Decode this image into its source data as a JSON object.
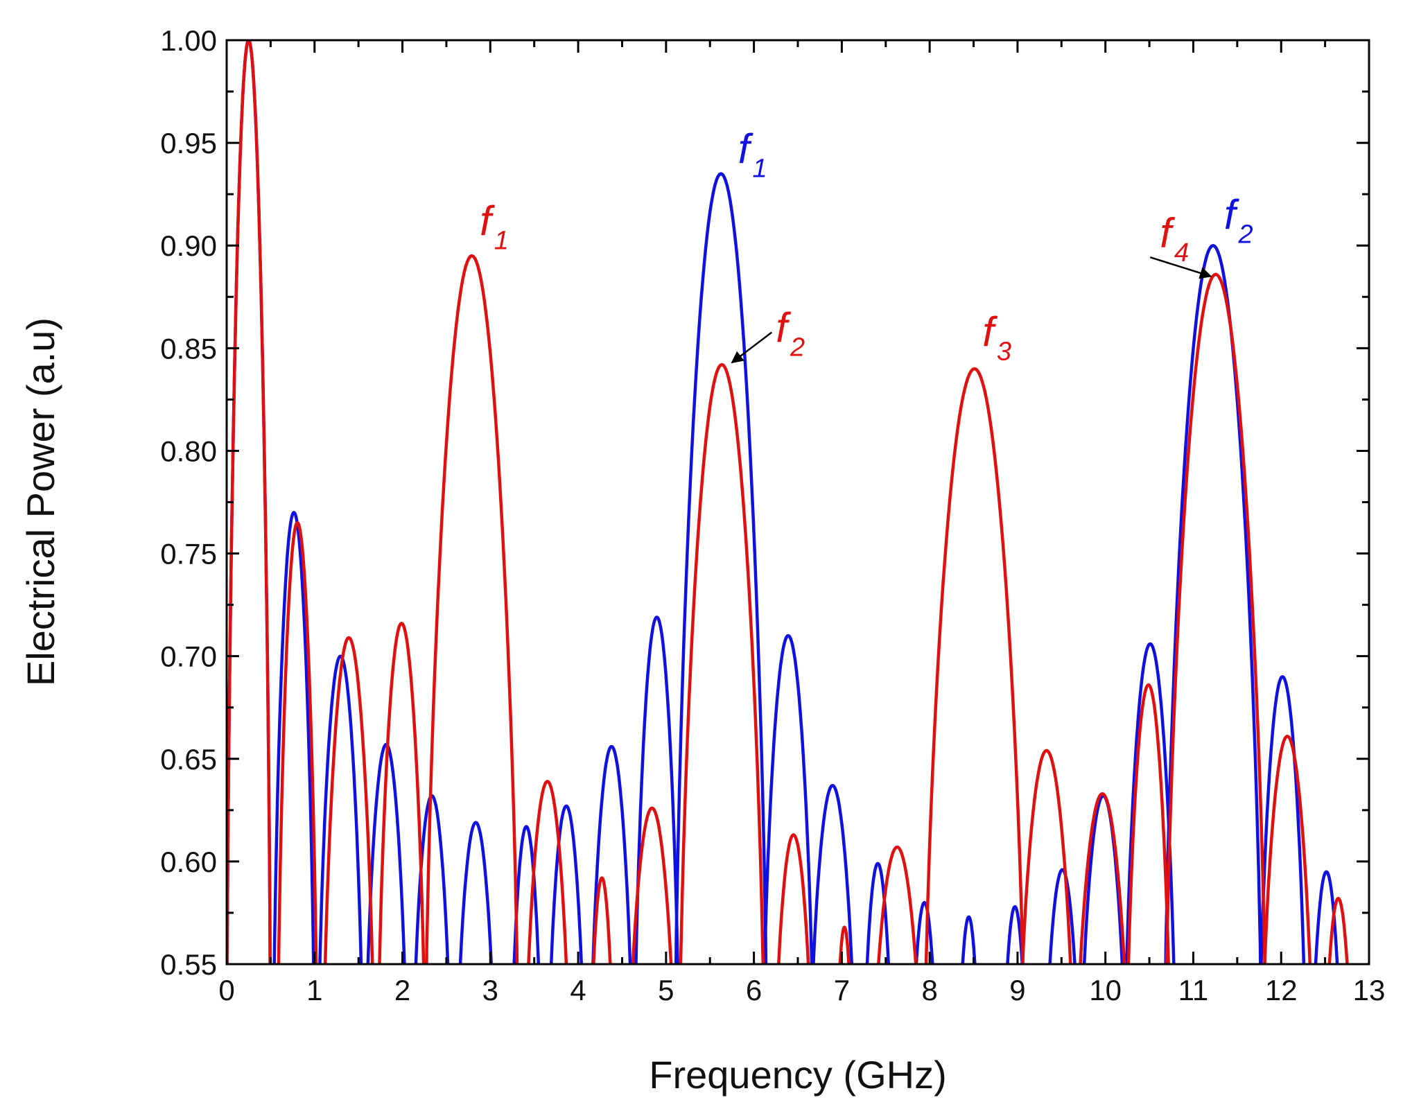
{
  "chart_data": {
    "type": "line",
    "title": "",
    "xlabel": "Frequency (GHz)",
    "ylabel": "Electrical Power (a.u)",
    "xlim": [
      0,
      13
    ],
    "ylim": [
      0.55,
      1.0
    ],
    "x_ticks": [
      "0",
      "1",
      "2",
      "3",
      "4",
      "5",
      "6",
      "7",
      "8",
      "9",
      "10",
      "11",
      "12",
      "13"
    ],
    "y_ticks": [
      "0.55",
      "0.60",
      "0.65",
      "0.70",
      "0.75",
      "0.80",
      "0.85",
      "0.90",
      "0.95",
      "1.00"
    ],
    "grid": false,
    "series": [
      {
        "name": "blue",
        "color": "#1010e0",
        "lobes": [
          [
            0.0,
            0.5,
            1.0
          ],
          [
            0.53,
            1.0,
            0.77
          ],
          [
            1.04,
            1.55,
            0.7
          ],
          [
            1.58,
            2.05,
            0.657
          ],
          [
            2.12,
            2.55,
            0.632
          ],
          [
            2.62,
            3.05,
            0.619
          ],
          [
            3.24,
            3.58,
            0.617
          ],
          [
            3.66,
            4.07,
            0.627
          ],
          [
            4.14,
            4.62,
            0.656
          ],
          [
            4.64,
            5.15,
            0.719
          ],
          [
            5.1,
            6.15,
            0.935
          ],
          [
            6.1,
            6.68,
            0.71
          ],
          [
            6.64,
            7.15,
            0.637
          ],
          [
            7.25,
            7.57,
            0.599
          ],
          [
            7.8,
            8.08,
            0.58
          ],
          [
            8.33,
            8.56,
            0.573
          ],
          [
            8.84,
            9.1,
            0.578
          ],
          [
            9.32,
            9.7,
            0.596
          ],
          [
            9.72,
            10.23,
            0.632
          ],
          [
            10.22,
            10.8,
            0.706
          ],
          [
            10.67,
            11.78,
            0.9
          ],
          [
            11.75,
            12.28,
            0.69
          ],
          [
            12.35,
            12.68,
            0.595
          ]
        ]
      },
      {
        "name": "red",
        "color": "#e01010",
        "lobes": [
          [
            0.0,
            0.5,
            1.0
          ],
          [
            0.58,
            1.03,
            0.765
          ],
          [
            1.1,
            1.68,
            0.709
          ],
          [
            1.72,
            2.26,
            0.716
          ],
          [
            2.26,
            3.32,
            0.895
          ],
          [
            3.4,
            3.9,
            0.639
          ],
          [
            4.14,
            4.4,
            0.592
          ],
          [
            4.58,
            5.1,
            0.626
          ],
          [
            5.15,
            6.12,
            0.842
          ],
          [
            6.24,
            6.66,
            0.613
          ],
          [
            6.94,
            7.12,
            0.568
          ],
          [
            7.36,
            7.9,
            0.607
          ],
          [
            7.94,
            9.08,
            0.84
          ],
          [
            9.02,
            9.64,
            0.654
          ],
          [
            9.67,
            10.26,
            0.633
          ],
          [
            10.24,
            10.74,
            0.686
          ],
          [
            10.68,
            11.83,
            0.886
          ],
          [
            11.78,
            12.36,
            0.661
          ],
          [
            12.5,
            12.8,
            0.582
          ]
        ]
      }
    ],
    "annotations": [
      {
        "main": "f",
        "sub": "1",
        "color": "#e01010",
        "x": 2.88,
        "y": 0.905
      },
      {
        "main": "f",
        "sub": "1",
        "color": "#1010e0",
        "x": 5.82,
        "y": 0.94
      },
      {
        "main": "f",
        "sub": "2",
        "color": "#e01010",
        "x": 6.25,
        "y": 0.853,
        "arrow_to_x": 5.75,
        "arrow_to_y": 0.843
      },
      {
        "main": "f",
        "sub": "3",
        "color": "#e01010",
        "x": 8.6,
        "y": 0.851
      },
      {
        "main": "f",
        "sub": "4",
        "color": "#e01010",
        "x": 10.62,
        "y": 0.899,
        "arrow_to_x": 11.2,
        "arrow_to_y": 0.885
      },
      {
        "main": "f",
        "sub": "2",
        "color": "#1010e0",
        "x": 11.35,
        "y": 0.908
      }
    ]
  }
}
